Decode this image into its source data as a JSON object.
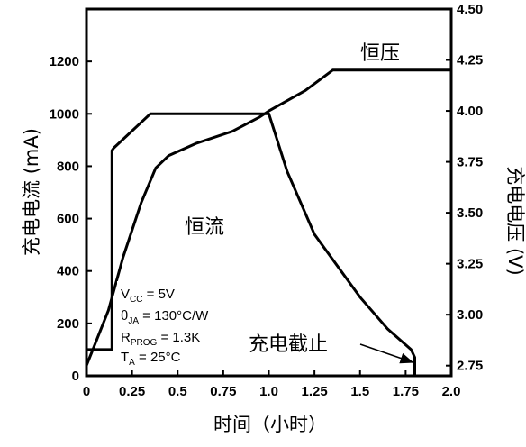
{
  "chart_data": {
    "type": "line",
    "xlabel": "时间（小时）",
    "ylabel": "充电电流 (mA)",
    "y2label": "充电电压 (V)",
    "xlim": [
      0,
      2.0
    ],
    "ylim": [
      0,
      1400
    ],
    "y2lim": [
      2.7,
      4.5
    ],
    "x_ticks": [
      "0",
      "0.25",
      "0.5",
      "0.75",
      "1.0",
      "1.25",
      "1.5",
      "1.75",
      "2.0"
    ],
    "y_ticks": [
      "0",
      "200",
      "400",
      "600",
      "800",
      "1000",
      "1200"
    ],
    "y2_ticks": [
      "2.75",
      "3.00",
      "3.25",
      "3.50",
      "3.75",
      "4.00",
      "4.25",
      "4.50"
    ],
    "grid": false,
    "series": [
      {
        "axis": "left",
        "x": [
          0,
          0.0,
          0.14,
          0.14,
          0.15,
          0.35,
          1.0,
          1.1,
          1.25,
          1.5,
          1.65,
          1.78,
          1.8,
          1.8
        ],
        "y": [
          0,
          100,
          100,
          860,
          870,
          1000,
          1000,
          780,
          540,
          300,
          180,
          100,
          70,
          0
        ]
      },
      {
        "axis": "right",
        "x": [
          0,
          0.12,
          0.2,
          0.3,
          0.38,
          0.45,
          0.6,
          0.8,
          0.95,
          1.0,
          1.2,
          1.35,
          1.5,
          2.0
        ],
        "y": [
          2.75,
          3.02,
          3.28,
          3.55,
          3.72,
          3.78,
          3.84,
          3.9,
          3.97,
          4.0,
          4.1,
          4.2,
          4.2,
          4.2
        ]
      }
    ],
    "annotations": {
      "constant_voltage": "恒压",
      "constant_current": "恒流",
      "charge_end": "充电截止",
      "conditions": [
        "V",
        "CC",
        " = 5V",
        "θ",
        "JA",
        " = 130°C/W",
        "R",
        "PROG",
        " = 1.3K",
        "T",
        "A",
        " = 25°C"
      ]
    }
  }
}
